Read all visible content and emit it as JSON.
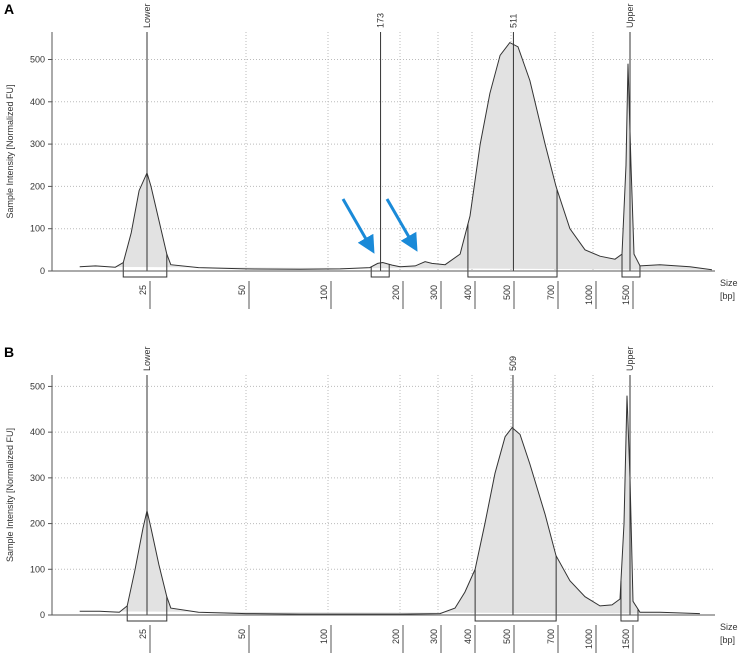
{
  "chart_data": [
    {
      "type": "line",
      "panel": "A",
      "ylabel": "Sample Intensity [Normalized FU]",
      "xlabel": "Size",
      "xunit": "[bp]",
      "xlim": [
        1,
        2650
      ],
      "xticks": [
        25,
        50,
        100,
        200,
        300,
        400,
        500,
        700,
        1000,
        1500
      ],
      "ylim": [
        0,
        565
      ],
      "yticks": [
        0,
        100,
        200,
        300,
        400,
        500
      ],
      "grid": true,
      "color": "#e2e2e2",
      "x": [
        8,
        12,
        17,
        19,
        21,
        23,
        25,
        26,
        28,
        30,
        31,
        38,
        50,
        83,
        117,
        158,
        169,
        176,
        189,
        200,
        240,
        266,
        284,
        321,
        365,
        394,
        421,
        446,
        472,
        497,
        532,
        586,
        655,
        708,
        818,
        937,
        1095,
        1297,
        1392,
        1446,
        1473,
        1514,
        1554,
        1635,
        1905,
        2311,
        2608
      ],
      "values": [
        10,
        12,
        9,
        20,
        90,
        190,
        232,
        200,
        120,
        40,
        15,
        8,
        5,
        4,
        5,
        8,
        18,
        20,
        14,
        10,
        12,
        22,
        18,
        15,
        40,
        130,
        300,
        420,
        510,
        540,
        530,
        450,
        300,
        200,
        100,
        50,
        35,
        28,
        40,
        250,
        490,
        250,
        40,
        12,
        15,
        10,
        3
      ],
      "peaks": [
        {
          "name": "Lower",
          "x": 25
        },
        {
          "x": 173
        },
        {
          "x": 511
        },
        {
          "name": "Upper",
          "x": 1500
        }
      ],
      "regions": [
        [
          19,
          30
        ],
        [
          160,
          185
        ],
        [
          388,
          716
        ],
        [
          1392,
          1635
        ]
      ]
    },
    {
      "type": "line",
      "panel": "B",
      "ylabel": "Sample Intensity [Normalized FU]",
      "xlabel": "Size",
      "xunit": "[bp]",
      "xlim": [
        1,
        2650
      ],
      "xticks": [
        25,
        50,
        100,
        200,
        300,
        400,
        500,
        700,
        1000,
        1500
      ],
      "ylim": [
        0,
        525
      ],
      "yticks": [
        0,
        100,
        200,
        300,
        400,
        500
      ],
      "grid": true,
      "color": "#e2e2e2",
      "x": [
        8,
        13,
        18,
        20,
        22,
        24,
        25,
        26,
        28,
        30,
        31,
        38,
        50,
        83,
        200,
        306,
        350,
        379,
        408,
        433,
        459,
        485,
        505,
        541,
        586,
        655,
        708,
        818,
        937,
        1095,
        1257,
        1365,
        1419,
        1459,
        1500,
        1540,
        1635,
        1905,
        2446
      ],
      "values": [
        8,
        8,
        6,
        20,
        100,
        190,
        228,
        190,
        110,
        40,
        15,
        6,
        3,
        2,
        2,
        3,
        15,
        50,
        100,
        200,
        310,
        390,
        410,
        395,
        330,
        220,
        130,
        75,
        40,
        20,
        22,
        35,
        200,
        480,
        300,
        30,
        6,
        6,
        3
      ],
      "peaks": [
        {
          "name": "Lower",
          "x": 25
        },
        {
          "x": 509
        },
        {
          "name": "Upper",
          "x": 1500
        }
      ],
      "regions": [
        [
          20,
          30
        ],
        [
          408,
          709
        ],
        [
          1378,
          1608
        ]
      ]
    }
  ]
}
